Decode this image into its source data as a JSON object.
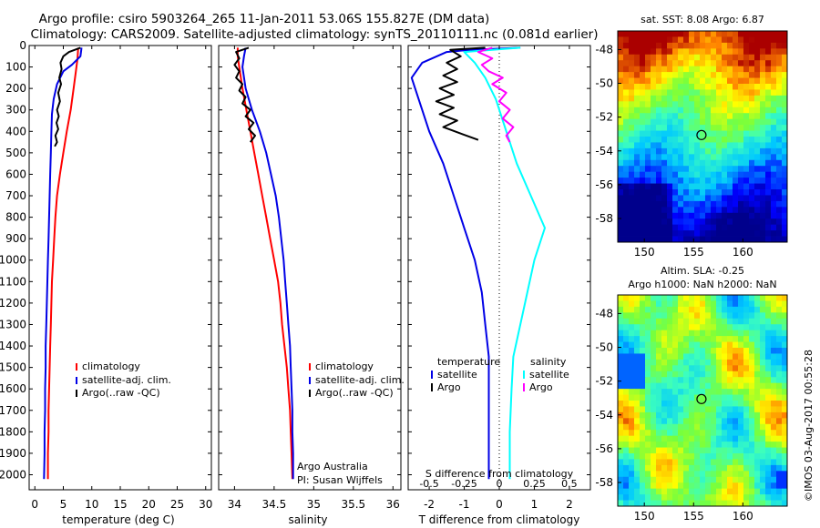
{
  "title_line1": "Argo profile: csiro 5903264_265 11-Jan-2011 53.06S 155.827E (DM data)",
  "title_line2": "Climatology: CARS2009. Satellite-adjusted climatology: synTS_20110111.nc (0.081d earlier)",
  "credit": "Argo Australia",
  "pi": "PI: Susan Wijffels",
  "imos_stamp": "©IMOS 03-Aug-2017 00:55:28",
  "colors": {
    "climatology": "#ff0000",
    "satellite": "#0000e6",
    "argo": "#000000",
    "sal_satellite": "#00ffff",
    "sal_argo": "#ff00ff"
  },
  "chart_data": [
    {
      "type": "line",
      "xlabel": "temperature (deg C)",
      "xlim": [
        -1,
        31
      ],
      "xticks": [
        0,
        5,
        10,
        15,
        20,
        25,
        30
      ],
      "ylim": [
        2070,
        0
      ],
      "yticks": [
        0,
        100,
        200,
        300,
        400,
        500,
        600,
        700,
        800,
        900,
        1000,
        1100,
        1200,
        1300,
        1400,
        1500,
        1600,
        1700,
        1800,
        1900,
        2000
      ],
      "legend": [
        "climatology",
        "satellite-adj. clim.",
        "Argo(..raw -QC)"
      ],
      "series": [
        {
          "name": "climatology",
          "color": "#ff0000",
          "points": [
            [
              7.6,
              10
            ],
            [
              7.5,
              60
            ],
            [
              7.2,
              120
            ],
            [
              6.8,
              200
            ],
            [
              6.3,
              300
            ],
            [
              5.6,
              400
            ],
            [
              5.0,
              500
            ],
            [
              4.4,
              600
            ],
            [
              3.9,
              700
            ],
            [
              3.6,
              800
            ],
            [
              3.4,
              900
            ],
            [
              3.2,
              1000
            ],
            [
              3.0,
              1100
            ],
            [
              2.9,
              1200
            ],
            [
              2.8,
              1300
            ],
            [
              2.7,
              1400
            ],
            [
              2.6,
              1500
            ],
            [
              2.5,
              1600
            ],
            [
              2.4,
              1700
            ],
            [
              2.4,
              1800
            ],
            [
              2.3,
              1900
            ],
            [
              2.3,
              2020
            ]
          ]
        },
        {
          "name": "satellite-adj. clim.",
          "color": "#0000e6",
          "points": [
            [
              8.2,
              10
            ],
            [
              8.0,
              50
            ],
            [
              6.5,
              90
            ],
            [
              5.0,
              120
            ],
            [
              3.9,
              180
            ],
            [
              3.3,
              250
            ],
            [
              3.0,
              320
            ],
            [
              2.9,
              400
            ],
            [
              2.8,
              500
            ],
            [
              2.7,
              600
            ],
            [
              2.6,
              700
            ],
            [
              2.5,
              800
            ],
            [
              2.4,
              900
            ],
            [
              2.3,
              1000
            ],
            [
              2.2,
              1100
            ],
            [
              2.1,
              1200
            ],
            [
              2.0,
              1300
            ],
            [
              1.9,
              1400
            ],
            [
              1.9,
              1500
            ],
            [
              1.8,
              1600
            ],
            [
              1.8,
              1700
            ],
            [
              1.7,
              1800
            ],
            [
              1.7,
              1900
            ],
            [
              1.6,
              2020
            ]
          ]
        },
        {
          "name": "Argo(..raw -QC)",
          "color": "#000000",
          "points": [
            [
              8.0,
              10
            ],
            [
              6.0,
              30
            ],
            [
              5.0,
              50
            ],
            [
              4.5,
              80
            ],
            [
              4.7,
              110
            ],
            [
              4.3,
              150
            ],
            [
              4.6,
              180
            ],
            [
              4.1,
              220
            ],
            [
              4.4,
              260
            ],
            [
              3.9,
              300
            ],
            [
              4.2,
              330
            ],
            [
              3.8,
              360
            ],
            [
              4.1,
              390
            ],
            [
              3.6,
              420
            ],
            [
              3.9,
              450
            ],
            [
              3.5,
              470
            ]
          ]
        }
      ]
    },
    {
      "type": "line",
      "xlabel": "salinity",
      "xlim": [
        33.8,
        36.1
      ],
      "xticks": [
        34,
        34.5,
        35,
        35.5,
        36
      ],
      "ylim": [
        2070,
        0
      ],
      "legend": [
        "climatology",
        "satellite-adj. clim.",
        "Argo(..raw -QC)"
      ],
      "series": [
        {
          "name": "climatology",
          "color": "#ff0000",
          "points": [
            [
              34.04,
              10
            ],
            [
              34.04,
              50
            ],
            [
              34.06,
              100
            ],
            [
              34.1,
              200
            ],
            [
              34.15,
              300
            ],
            [
              34.2,
              400
            ],
            [
              34.25,
              500
            ],
            [
              34.3,
              600
            ],
            [
              34.35,
              700
            ],
            [
              34.4,
              800
            ],
            [
              34.45,
              900
            ],
            [
              34.5,
              1000
            ],
            [
              34.55,
              1100
            ],
            [
              34.58,
              1200
            ],
            [
              34.6,
              1300
            ],
            [
              34.63,
              1400
            ],
            [
              34.66,
              1500
            ],
            [
              34.68,
              1600
            ],
            [
              34.7,
              1700
            ],
            [
              34.71,
              1800
            ],
            [
              34.72,
              1900
            ],
            [
              34.73,
              2020
            ]
          ]
        },
        {
          "name": "satellite-adj. clim.",
          "color": "#0000e6",
          "points": [
            [
              34.14,
              10
            ],
            [
              34.12,
              50
            ],
            [
              34.1,
              100
            ],
            [
              34.14,
              200
            ],
            [
              34.22,
              300
            ],
            [
              34.32,
              400
            ],
            [
              34.4,
              500
            ],
            [
              34.46,
              600
            ],
            [
              34.52,
              700
            ],
            [
              34.56,
              800
            ],
            [
              34.59,
              900
            ],
            [
              34.62,
              1000
            ],
            [
              34.64,
              1100
            ],
            [
              34.66,
              1200
            ],
            [
              34.68,
              1300
            ],
            [
              34.7,
              1400
            ],
            [
              34.71,
              1500
            ],
            [
              34.72,
              1600
            ],
            [
              34.73,
              1700
            ],
            [
              34.73,
              1800
            ],
            [
              34.74,
              1900
            ],
            [
              34.74,
              2020
            ]
          ]
        },
        {
          "name": "Argo(..raw -QC)",
          "color": "#000000",
          "points": [
            [
              34.18,
              10
            ],
            [
              34.02,
              30
            ],
            [
              34.06,
              60
            ],
            [
              34.0,
              90
            ],
            [
              34.06,
              120
            ],
            [
              34.02,
              150
            ],
            [
              34.1,
              180
            ],
            [
              34.06,
              210
            ],
            [
              34.14,
              240
            ],
            [
              34.1,
              270
            ],
            [
              34.2,
              300
            ],
            [
              34.14,
              330
            ],
            [
              34.24,
              360
            ],
            [
              34.18,
              390
            ],
            [
              34.26,
              420
            ],
            [
              34.2,
              450
            ]
          ]
        }
      ]
    },
    {
      "type": "line",
      "xlabel": "T difference from climatology",
      "xlabel_top": "S difference from climatology",
      "xlim": [
        -2.6,
        2.6
      ],
      "xticks": [
        -2,
        -1,
        0,
        1,
        2
      ],
      "xticks_top": [
        -0.5,
        -0.25,
        0,
        0.25,
        0.5
      ],
      "ylim": [
        2070,
        0
      ],
      "legend": [
        "temperature",
        "satellite",
        "Argo",
        "salinity",
        "satellite",
        "Argo"
      ],
      "series": [
        {
          "name": "satellite",
          "color": "#0000e6",
          "points": [
            [
              0.6,
              10
            ],
            [
              -0.8,
              20
            ],
            [
              -1.5,
              30
            ],
            [
              -2.2,
              80
            ],
            [
              -2.5,
              150
            ],
            [
              -2.3,
              250
            ],
            [
              -2.0,
              400
            ],
            [
              -1.6,
              550
            ],
            [
              -1.3,
              700
            ],
            [
              -1.0,
              850
            ],
            [
              -0.7,
              1000
            ],
            [
              -0.5,
              1150
            ],
            [
              -0.4,
              1300
            ],
            [
              -0.3,
              1450
            ],
            [
              -0.3,
              1600
            ],
            [
              -0.3,
              1800
            ],
            [
              -0.3,
              2020
            ]
          ]
        },
        {
          "name": "Argo",
          "color": "#000000",
          "points": [
            [
              -0.4,
              10
            ],
            [
              -1.4,
              20
            ],
            [
              -1.1,
              50
            ],
            [
              -1.5,
              80
            ],
            [
              -1.2,
              110
            ],
            [
              -1.6,
              140
            ],
            [
              -1.2,
              170
            ],
            [
              -1.7,
              200
            ],
            [
              -1.3,
              230
            ],
            [
              -1.8,
              260
            ],
            [
              -1.3,
              290
            ],
            [
              -1.7,
              320
            ],
            [
              -1.2,
              350
            ],
            [
              -1.6,
              380
            ],
            [
              -1.1,
              410
            ],
            [
              -0.6,
              440
            ]
          ]
        },
        {
          "name": "satellite",
          "color": "#00ffff",
          "points": [
            [
              0.6,
              10
            ],
            [
              -1.0,
              30
            ],
            [
              -0.7,
              80
            ],
            [
              -0.4,
              150
            ],
            [
              -0.1,
              250
            ],
            [
              0.2,
              400
            ],
            [
              0.5,
              550
            ],
            [
              0.9,
              700
            ],
            [
              1.3,
              850
            ],
            [
              1.0,
              1000
            ],
            [
              0.8,
              1150
            ],
            [
              0.6,
              1300
            ],
            [
              0.4,
              1450
            ],
            [
              0.35,
              1600
            ],
            [
              0.3,
              1800
            ],
            [
              0.3,
              2020
            ]
          ]
        },
        {
          "name": "Argo",
          "color": "#ff00ff",
          "points": [
            [
              -0.2,
              10
            ],
            [
              -0.6,
              30
            ],
            [
              -0.2,
              60
            ],
            [
              -0.5,
              90
            ],
            [
              -0.3,
              120
            ],
            [
              0.1,
              150
            ],
            [
              -0.2,
              180
            ],
            [
              0.2,
              220
            ],
            [
              0.0,
              260
            ],
            [
              0.3,
              300
            ],
            [
              0.1,
              340
            ],
            [
              0.4,
              380
            ],
            [
              0.2,
              420
            ],
            [
              0.3,
              450
            ]
          ]
        }
      ]
    },
    {
      "type": "heatmap",
      "title": "sat. SST: 8.08 Argo: 6.87",
      "xticks": [
        150,
        155,
        160
      ],
      "yticks": [
        -48,
        -50,
        -52,
        -54,
        -56,
        -58
      ],
      "xlim": [
        147.3,
        164.5
      ],
      "ylim": [
        -59.4,
        -46.9
      ],
      "marker": [
        155.8,
        -53.06
      ]
    },
    {
      "type": "heatmap",
      "title": "Altim. SLA: -0.25",
      "subtitle": "Argo h1000: NaN h2000: NaN",
      "xticks": [
        150,
        155,
        160
      ],
      "yticks": [
        -48,
        -50,
        -52,
        -54,
        -56,
        -58
      ],
      "xlim": [
        147.3,
        164.5
      ],
      "ylim": [
        -59.4,
        -46.9
      ],
      "marker": [
        155.8,
        -53.06
      ]
    }
  ]
}
